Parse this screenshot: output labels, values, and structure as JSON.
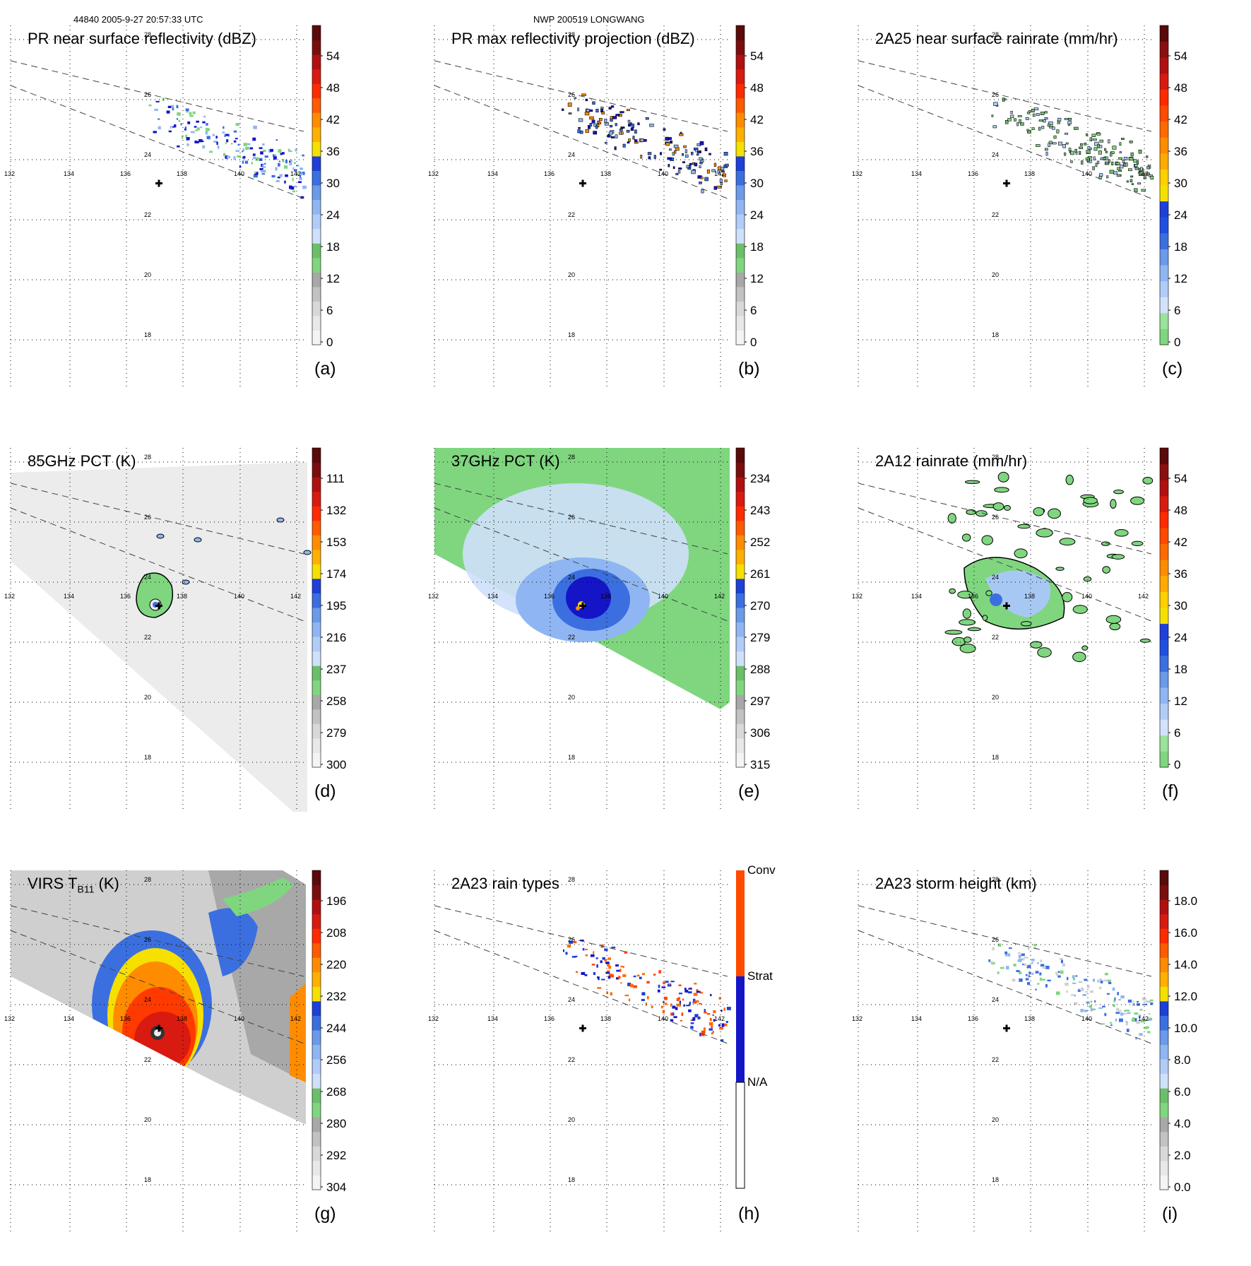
{
  "header": {
    "left": "44840 2005-9-27 20:57:33 UTC",
    "right": "NWP 200519 LONGWANG"
  },
  "map": {
    "lon_labels": [
      "132",
      "134",
      "136",
      "138",
      "140",
      "142"
    ],
    "lat_labels": [
      "18",
      "20",
      "22",
      "24",
      "26",
      "28"
    ]
  },
  "colors": {
    "green": "#7fd67f",
    "lightblue": "#a8c8f4",
    "blue": "#3b6fe0",
    "darkblue": "#1515c8",
    "yellow": "#f5e000",
    "orange": "#ff8c00",
    "red": "#e82000",
    "darkred": "#7a0e0e",
    "gray": "#cfcfcf"
  },
  "panels": [
    {
      "id": "a",
      "title": "PR near surface reflectivity (dBZ)",
      "letter": "(a)",
      "colorbar": {
        "type": "reflectivity",
        "labels": [
          "54",
          "48",
          "42",
          "36",
          "30",
          "24",
          "18",
          "12",
          "6",
          "0"
        ]
      }
    },
    {
      "id": "b",
      "title": "PR max reflectivity projection (dBZ)",
      "letter": "(b)",
      "colorbar": {
        "type": "reflectivity",
        "labels": [
          "54",
          "48",
          "42",
          "36",
          "30",
          "24",
          "18",
          "12",
          "6",
          "0"
        ]
      }
    },
    {
      "id": "c",
      "title": "2A25 near surface rainrate (mm/hr)",
      "letter": "(c)",
      "colorbar": {
        "type": "rainrate",
        "labels": [
          "54",
          "48",
          "42",
          "36",
          "30",
          "24",
          "18",
          "12",
          "6",
          "0"
        ]
      }
    },
    {
      "id": "d",
      "title": "85GHz PCT (K)",
      "letter": "(d)",
      "colorbar": {
        "type": "reflectivity",
        "labels": [
          "111",
          "132",
          "153",
          "174",
          "195",
          "216",
          "237",
          "258",
          "279",
          "300"
        ]
      }
    },
    {
      "id": "e",
      "title": "37GHz PCT (K)",
      "letter": "(e)",
      "colorbar": {
        "type": "reflectivity",
        "labels": [
          "234",
          "243",
          "252",
          "261",
          "270",
          "279",
          "288",
          "297",
          "306",
          "315"
        ]
      }
    },
    {
      "id": "f",
      "title": "2A12 rainrate (mm/hr)",
      "letter": "(f)",
      "colorbar": {
        "type": "rainrate",
        "labels": [
          "54",
          "48",
          "42",
          "36",
          "30",
          "24",
          "18",
          "12",
          "6",
          "0"
        ]
      }
    },
    {
      "id": "g",
      "title": "VIRS T",
      "title_sub": "B11",
      "title_post": " (K)",
      "letter": "(g)",
      "colorbar": {
        "type": "reflectivity",
        "labels": [
          "196",
          "208",
          "220",
          "232",
          "244",
          "256",
          "268",
          "280",
          "292",
          "304"
        ]
      }
    },
    {
      "id": "h",
      "title": "2A23 rain types",
      "letter": "(h)",
      "colorbar": {
        "type": "raintype",
        "labels": [
          "Conv",
          "Strat",
          "N/A"
        ]
      }
    },
    {
      "id": "i",
      "title": "2A23 storm height (km)",
      "letter": "(i)",
      "colorbar": {
        "type": "reflectivity",
        "labels": [
          "18.0",
          "16.0",
          "14.0",
          "12.0",
          "10.0",
          "8.0",
          "6.0",
          "4.0",
          "2.0",
          "0.0"
        ]
      }
    }
  ]
}
